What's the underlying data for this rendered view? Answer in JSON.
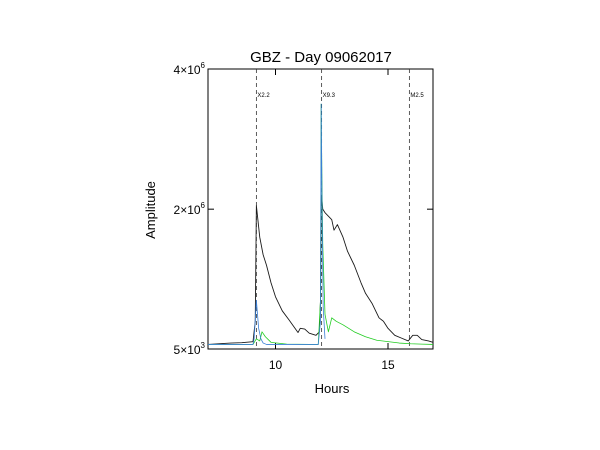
{
  "chart_data": {
    "type": "line",
    "title": "GBZ - Day 09062017",
    "xlabel": "Hours",
    "ylabel": "Amplitude",
    "xlim": [
      7.0,
      17.0
    ],
    "ylim": [
      5000,
      4000000
    ],
    "x_ticks": [
      {
        "value": 10,
        "label": "10"
      },
      {
        "value": 15,
        "label": "15"
      }
    ],
    "y_ticks": [
      {
        "value": 5000,
        "base": "5×10",
        "exp": "3"
      },
      {
        "value": 2000000,
        "base": "2×10",
        "exp": "6"
      },
      {
        "value": 4000000,
        "base": "4×10",
        "exp": "6"
      }
    ],
    "events": [
      {
        "x": 9.15,
        "label": "X2.2"
      },
      {
        "x": 12.05,
        "label": "X9.3"
      },
      {
        "x": 15.95,
        "label": "M2.5"
      }
    ],
    "series": [
      {
        "color": "#1a1a1a",
        "x": [
          7.0,
          8.0,
          8.5,
          9.0,
          9.1,
          9.15,
          9.2,
          9.3,
          9.45,
          9.6,
          9.8,
          10.0,
          10.3,
          10.6,
          11.0,
          11.1,
          11.3,
          11.5,
          11.8,
          11.95,
          12.0,
          12.03,
          12.06,
          12.1,
          12.2,
          12.35,
          12.5,
          12.6,
          12.75,
          13.0,
          13.2,
          13.5,
          13.8,
          14.0,
          14.3,
          14.6,
          14.8,
          15.0,
          15.3,
          15.6,
          15.9,
          16.1,
          16.3,
          16.5,
          16.8,
          17.0
        ],
        "y": [
          70000,
          90000,
          95000,
          110000,
          400000,
          2050000,
          1900000,
          1600000,
          1350000,
          1200000,
          950000,
          750000,
          550000,
          420000,
          240000,
          300000,
          290000,
          230000,
          200000,
          250000,
          700000,
          2200000,
          2150000,
          2000000,
          1950000,
          1900000,
          1850000,
          1700000,
          1780000,
          1600000,
          1400000,
          1200000,
          950000,
          800000,
          650000,
          450000,
          400000,
          300000,
          200000,
          160000,
          120000,
          200000,
          200000,
          140000,
          120000,
          100000
        ]
      },
      {
        "color": "#3a7fd5",
        "x": [
          7.0,
          9.0,
          9.05,
          9.15,
          9.25,
          9.35,
          9.45,
          9.6,
          11.9,
          12.0,
          12.03,
          12.07,
          12.12,
          12.2
        ],
        "y": [
          70000,
          70000,
          150000,
          700000,
          300000,
          150000,
          90000,
          70000,
          70000,
          400000,
          3500000,
          2000000,
          600000,
          150000
        ]
      },
      {
        "color": "#22cc22",
        "x": [
          7.0,
          9.0,
          9.15,
          9.3,
          9.4,
          9.55,
          9.8,
          10.5,
          11.5,
          11.9,
          12.0,
          12.03,
          12.06,
          12.1,
          12.2,
          12.35,
          12.5,
          12.7,
          13.0,
          13.5,
          14.0,
          14.5,
          15.0,
          15.5,
          16.0,
          16.5,
          17.0
        ],
        "y": [
          70000,
          70000,
          150000,
          120000,
          250000,
          180000,
          100000,
          75000,
          70000,
          70000,
          700000,
          3500000,
          2500000,
          1500000,
          500000,
          250000,
          450000,
          400000,
          350000,
          250000,
          180000,
          130000,
          110000,
          90000,
          80000,
          75000,
          70000
        ]
      }
    ]
  }
}
